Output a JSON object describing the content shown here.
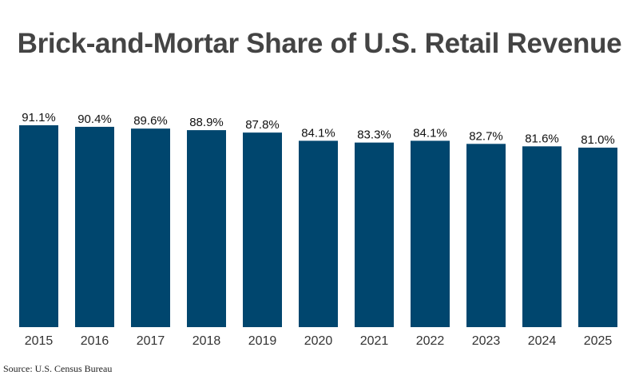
{
  "chart_data": {
    "type": "bar",
    "title": "Brick-and-Mortar Share of U.S. Retail Revenue",
    "categories": [
      "2015",
      "2016",
      "2017",
      "2018",
      "2019",
      "2020",
      "2021",
      "2022",
      "2023",
      "2024",
      "2025"
    ],
    "values": [
      91.1,
      90.4,
      89.6,
      88.9,
      87.8,
      84.1,
      83.3,
      84.1,
      82.7,
      81.6,
      81.0
    ],
    "data_labels": [
      "91.1%",
      "90.4%",
      "89.6%",
      "88.9%",
      "87.8%",
      "84.1%",
      "83.3%",
      "84.1%",
      "82.7%",
      "81.6%",
      "81.0%"
    ],
    "xlabel": "",
    "ylabel": "",
    "ylim": [
      0,
      91.1
    ],
    "grid": false,
    "legend": "none",
    "bar_color": "#00466e",
    "source": "Source: U.S. Census Bureau"
  }
}
